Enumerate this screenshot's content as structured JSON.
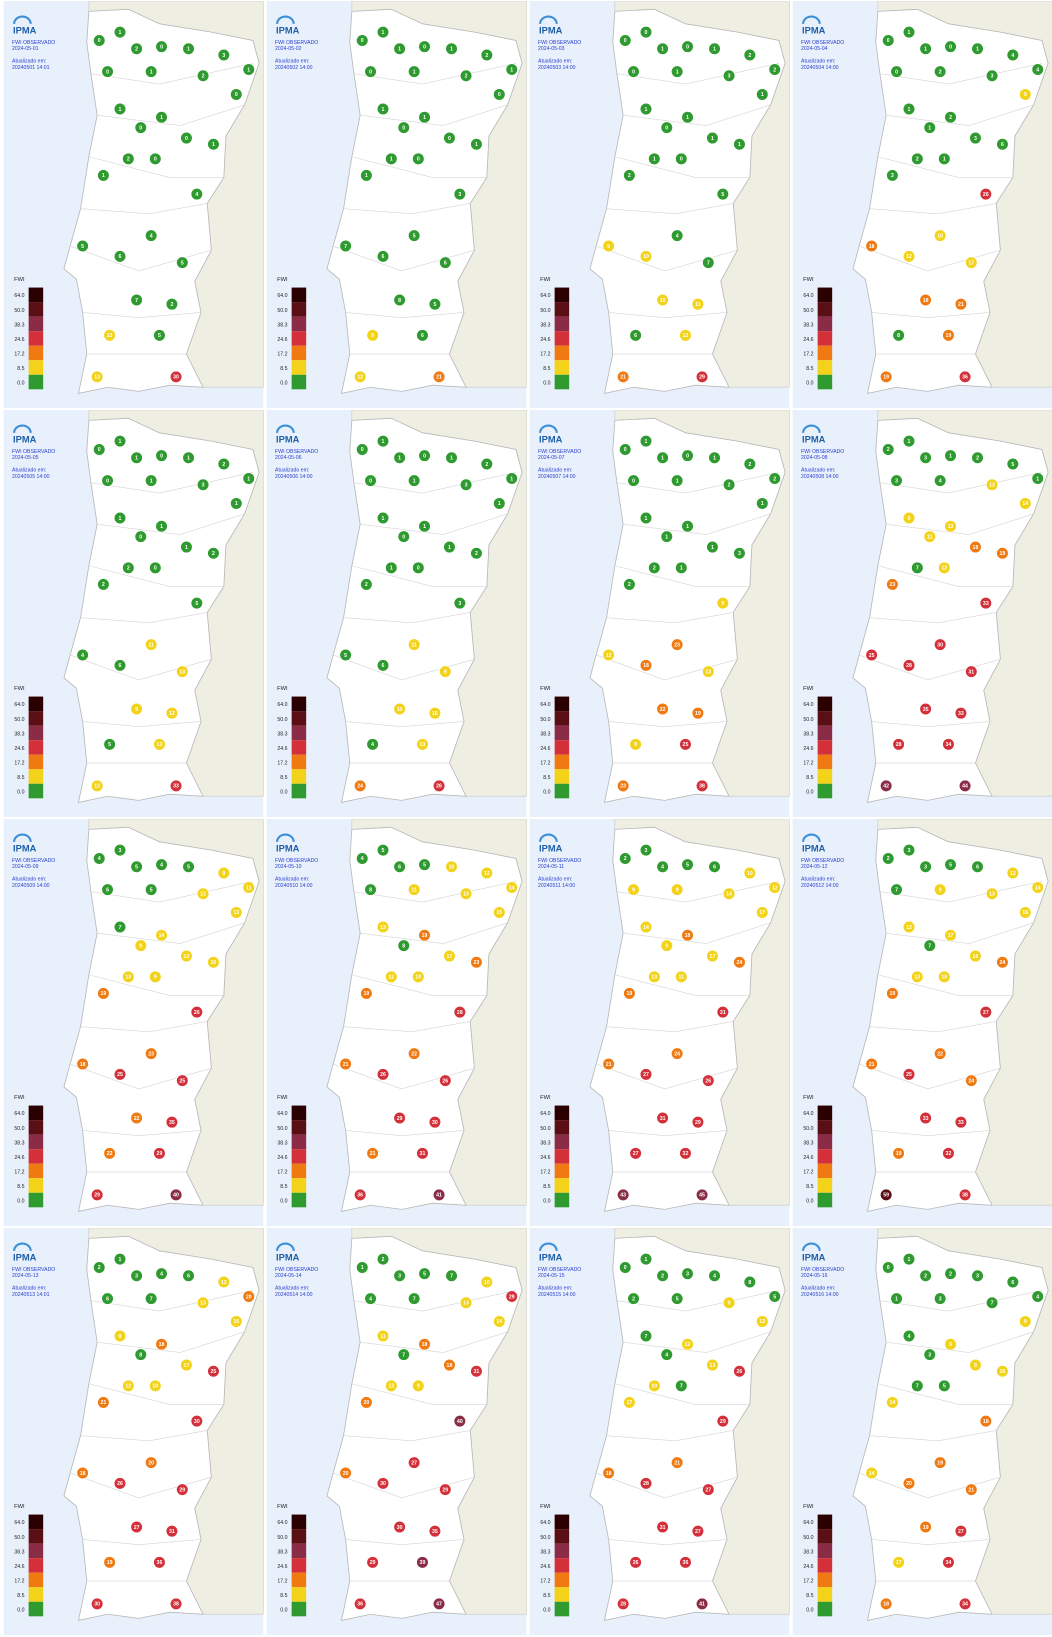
{
  "logo": "IPMA",
  "title": "FWI OBSERVADO",
  "updated_label": "Atualizado em:",
  "legend": {
    "title": "FWI",
    "ticks": [
      {
        "value": 64,
        "label": "64.0"
      },
      {
        "value": 50,
        "label": "50.0"
      },
      {
        "value": 38.3,
        "label": "38.3"
      },
      {
        "value": 24.6,
        "label": "24.6"
      },
      {
        "value": 17.2,
        "label": "17.2"
      },
      {
        "value": 8.5,
        "label": "8.5"
      },
      {
        "value": 0,
        "label": "0.0"
      }
    ],
    "colors": [
      "#2a0000",
      "#5a0f14",
      "#8b2c46",
      "#d3303a",
      "#f07a12",
      "#f3d31a",
      "#2f9a2f"
    ]
  },
  "panels": [
    {
      "date": "2024-05-01",
      "updated": "20240501 14:01",
      "stations": [
        0,
        1,
        2,
        0,
        1,
        3,
        1,
        0,
        1,
        2,
        0,
        1,
        0,
        1,
        0,
        1,
        2,
        0,
        1,
        4,
        5,
        6,
        4,
        5,
        7,
        2,
        13,
        5,
        13,
        30
      ]
    },
    {
      "date": "2024-05-02",
      "updated": "20240502 14:00",
      "stations": [
        0,
        1,
        1,
        0,
        1,
        2,
        1,
        0,
        1,
        2,
        0,
        1,
        0,
        1,
        0,
        1,
        1,
        0,
        1,
        3,
        7,
        6,
        5,
        6,
        8,
        5,
        9,
        6,
        12,
        21
      ]
    },
    {
      "date": "2024-05-03",
      "updated": "20240503 14:00",
      "stations": [
        0,
        0,
        1,
        0,
        1,
        2,
        2,
        0,
        1,
        3,
        1,
        1,
        0,
        1,
        1,
        1,
        1,
        0,
        2,
        5,
        9,
        10,
        4,
        7,
        10,
        11,
        6,
        12,
        21,
        29
      ]
    },
    {
      "date": "2024-05-04",
      "updated": "20240504 14:00",
      "stations": [
        0,
        1,
        1,
        0,
        1,
        4,
        4,
        0,
        2,
        3,
        9,
        1,
        1,
        2,
        3,
        6,
        2,
        1,
        3,
        26,
        18,
        12,
        10,
        17,
        18,
        21,
        8,
        19,
        19,
        36
      ]
    },
    {
      "date": "2024-05-05",
      "updated": "20240505 14:00",
      "stations": [
        0,
        1,
        1,
        0,
        1,
        2,
        1,
        0,
        1,
        3,
        1,
        1,
        0,
        1,
        1,
        2,
        2,
        0,
        2,
        5,
        4,
        6,
        11,
        13,
        9,
        12,
        5,
        13,
        12,
        33
      ]
    },
    {
      "date": "2024-05-06",
      "updated": "20240506 14:00",
      "stations": [
        0,
        1,
        1,
        0,
        1,
        2,
        1,
        0,
        1,
        3,
        1,
        1,
        0,
        1,
        1,
        2,
        1,
        0,
        2,
        3,
        5,
        6,
        11,
        9,
        10,
        16,
        4,
        13,
        24,
        26
      ]
    },
    {
      "date": "2024-05-07",
      "updated": "20240507 14:00",
      "stations": [
        0,
        1,
        1,
        0,
        1,
        2,
        2,
        0,
        1,
        2,
        1,
        1,
        1,
        1,
        1,
        3,
        2,
        1,
        2,
        9,
        12,
        18,
        23,
        13,
        22,
        19,
        9,
        25,
        23,
        38
      ]
    },
    {
      "date": "2024-05-08",
      "updated": "20240508 14:00",
      "stations": [
        2,
        1,
        3,
        1,
        2,
        5,
        1,
        3,
        4,
        13,
        14,
        9,
        11,
        13,
        18,
        19,
        7,
        12,
        23,
        33,
        25,
        28,
        30,
        31,
        35,
        33,
        28,
        34,
        42,
        44
      ]
    },
    {
      "date": "2024-05-09",
      "updated": "20240509 14:00",
      "stations": [
        4,
        3,
        5,
        4,
        5,
        9,
        11,
        6,
        5,
        12,
        13,
        7,
        9,
        14,
        12,
        16,
        13,
        9,
        19,
        26,
        18,
        25,
        23,
        25,
        22,
        35,
        22,
        29,
        29,
        40
      ]
    },
    {
      "date": "2024-05-10",
      "updated": "20240510 14:00",
      "stations": [
        4,
        5,
        6,
        5,
        10,
        12,
        14,
        8,
        11,
        13,
        15,
        13,
        8,
        19,
        17,
        23,
        12,
        10,
        19,
        28,
        21,
        26,
        22,
        26,
        29,
        30,
        21,
        31,
        36,
        41
      ]
    },
    {
      "date": "2024-05-11",
      "updated": "20240511 14:00",
      "stations": [
        2,
        3,
        4,
        5,
        6,
        10,
        12,
        9,
        9,
        14,
        17,
        14,
        9,
        18,
        17,
        24,
        13,
        11,
        19,
        31,
        21,
        27,
        24,
        26,
        31,
        29,
        27,
        32,
        43,
        45
      ]
    },
    {
      "date": "2024-05-12",
      "updated": "20240512 14:00",
      "stations": [
        2,
        3,
        3,
        5,
        6,
        12,
        14,
        7,
        9,
        13,
        16,
        12,
        7,
        17,
        16,
        24,
        13,
        10,
        19,
        27,
        21,
        25,
        22,
        24,
        33,
        33,
        19,
        32,
        59,
        38
      ]
    },
    {
      "date": "2024-05-13",
      "updated": "20240513 14:01",
      "stations": [
        2,
        1,
        3,
        4,
        6,
        12,
        20,
        6,
        7,
        13,
        16,
        9,
        8,
        18,
        17,
        25,
        12,
        10,
        21,
        30,
        18,
        26,
        20,
        29,
        27,
        31,
        19,
        36,
        30,
        38
      ]
    },
    {
      "date": "2024-05-14",
      "updated": "20240514 14:00",
      "stations": [
        1,
        2,
        3,
        5,
        7,
        10,
        29,
        4,
        7,
        13,
        14,
        11,
        7,
        18,
        18,
        31,
        13,
        9,
        20,
        40,
        20,
        30,
        27,
        29,
        30,
        35,
        29,
        39,
        36,
        47
      ]
    },
    {
      "date": "2024-05-15",
      "updated": "20240515 14:00",
      "stations": [
        0,
        1,
        2,
        3,
        4,
        8,
        5,
        2,
        5,
        9,
        12,
        7,
        4,
        12,
        13,
        26,
        10,
        7,
        17,
        29,
        18,
        28,
        21,
        27,
        31,
        27,
        26,
        36,
        28,
        41
      ]
    },
    {
      "date": "2024-05-16",
      "updated": "20240516 14:00",
      "stations": [
        0,
        1,
        2,
        2,
        3,
        6,
        4,
        1,
        3,
        7,
        9,
        4,
        3,
        9,
        9,
        16,
        7,
        5,
        14,
        18,
        14,
        20,
        19,
        21,
        19,
        27,
        17,
        34,
        18,
        34
      ]
    }
  ]
}
